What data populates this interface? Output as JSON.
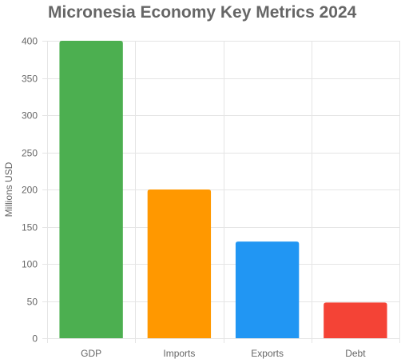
{
  "chart_data": {
    "type": "bar",
    "title": "Micronesia Economy Key Metrics 2024",
    "xlabel": "",
    "ylabel": "Millions USD",
    "categories": [
      "GDP",
      "Imports",
      "Exports",
      "Debt"
    ],
    "values": [
      400,
      200,
      130,
      48
    ],
    "colors": [
      "#4caf50",
      "#ff9800",
      "#2196f3",
      "#f44336"
    ],
    "ylim": [
      0,
      400
    ],
    "yticks": [
      0,
      50,
      100,
      150,
      200,
      250,
      300,
      350,
      400
    ],
    "grid": true,
    "legend": "none"
  }
}
